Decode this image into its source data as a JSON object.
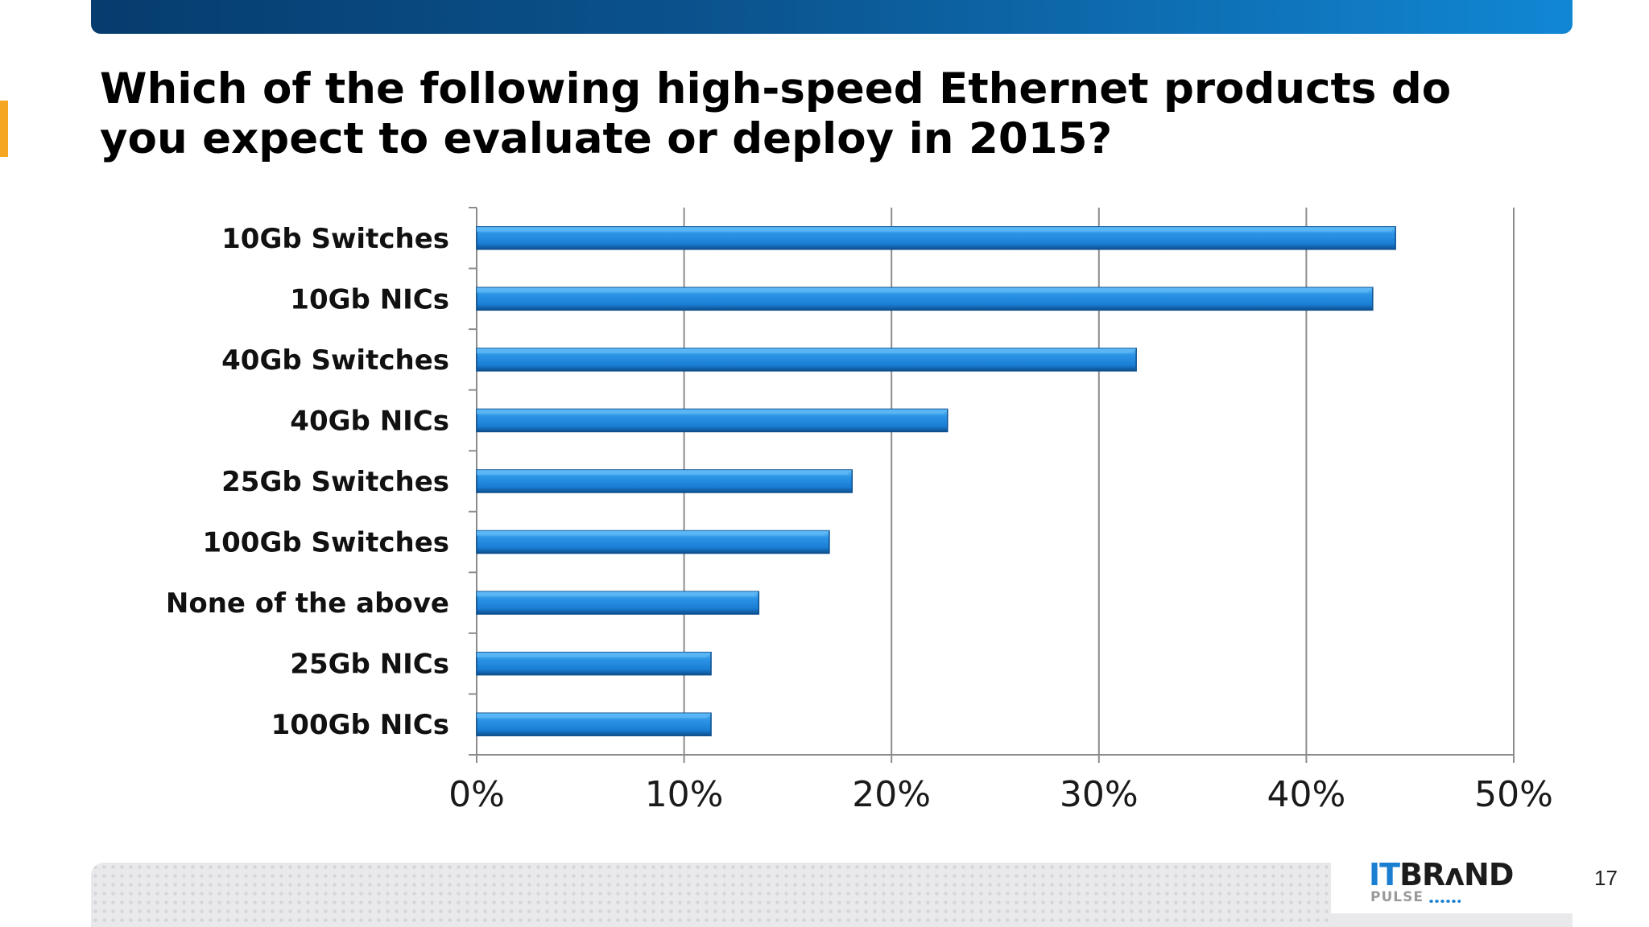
{
  "slide": {
    "title": "Which of the following high-speed Ethernet products do you expect to evaluate or deploy in 2015?",
    "page_number": "17"
  },
  "logo": {
    "it": "IT",
    "brand": "BRʌND",
    "sub": "PULSE"
  },
  "colors": {
    "bar_fill": "#1e86dc",
    "bar_light": "#5ab6f5",
    "bar_dark": "#0d4f8e",
    "grid": "#8c8c8c",
    "header_band_start": "#063c6e",
    "header_band_end": "#1187d4",
    "accent": "#f5a623"
  },
  "chart_data": {
    "type": "bar",
    "orientation": "horizontal",
    "categories": [
      "10Gb Switches",
      "10Gb NICs",
      "40Gb Switches",
      "40Gb NICs",
      "25Gb Switches",
      "100Gb Switches",
      "None of the above",
      "25Gb NICs",
      "100Gb NICs"
    ],
    "values": [
      44.3,
      43.2,
      31.8,
      22.7,
      18.1,
      17.0,
      13.6,
      11.3,
      11.3
    ],
    "value_unit": "%",
    "xlim": [
      0,
      50
    ],
    "xticks": [
      0,
      10,
      20,
      30,
      40,
      50
    ],
    "xtick_labels": [
      "0%",
      "10%",
      "20%",
      "30%",
      "40%",
      "50%"
    ],
    "grid": true,
    "legend": "none"
  }
}
